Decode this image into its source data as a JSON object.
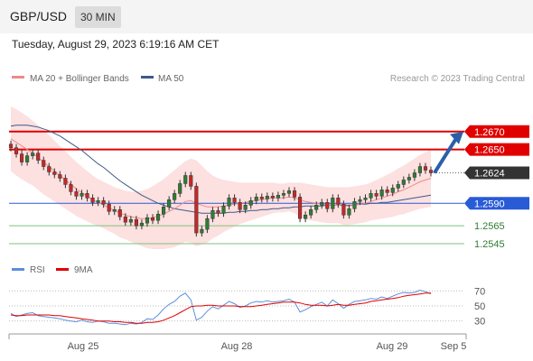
{
  "header": {
    "symbol": "GBP/USD",
    "timeframe": "30 MIN",
    "datetime": "Tuesday, August 29, 2023 6:19:16 AM CET"
  },
  "legend": {
    "ma20_label": "MA 20 + Bollinger Bands",
    "ma50_label": "MA 50",
    "copyright": "Research © 2023 Trading Central",
    "rsi_label": "RSI",
    "rsi_ma_label": "9MA"
  },
  "colors": {
    "up_candle": "#2e7d32",
    "down_candle": "#c62828",
    "ma20": "#ef8a8a",
    "bollinger_fill": "#fde0e0",
    "ma50": "#3d5a8a",
    "resistance": "#e00000",
    "pivot": "#2a5bd7",
    "support": "#7cc37c",
    "current_price_tag": "#333333",
    "rsi_line": "#5b8fd9",
    "rsi_ma": "#e00000",
    "forecast_arrow": "#2a5fa8"
  },
  "chart_data": [
    {
      "type": "candlestick",
      "x_tick_labels": [
        "Aug 25",
        "Aug 28",
        "Aug 29",
        "Sep 5"
      ],
      "ylim": [
        1.254,
        1.271
      ],
      "horizontal_levels": [
        {
          "value": 1.267,
          "label": "1.2670",
          "kind": "resistance"
        },
        {
          "value": 1.265,
          "label": "1.2650",
          "kind": "resistance"
        },
        {
          "value": 1.2624,
          "label": "1.2624",
          "kind": "current"
        },
        {
          "value": 1.259,
          "label": "1.2590",
          "kind": "pivot"
        },
        {
          "value": 1.2565,
          "label": "1.2565",
          "kind": "support"
        },
        {
          "value": 1.2545,
          "label": "1.2545",
          "kind": "support"
        }
      ],
      "close": [
        1.2652,
        1.2645,
        1.2636,
        1.2643,
        1.2646,
        1.2638,
        1.2631,
        1.2625,
        1.2622,
        1.2618,
        1.2611,
        1.2603,
        1.2598,
        1.2601,
        1.2596,
        1.2591,
        1.2593,
        1.2589,
        1.2581,
        1.2583,
        1.2575,
        1.2569,
        1.2572,
        1.2565,
        1.2568,
        1.2574,
        1.2571,
        1.2578,
        1.2586,
        1.2594,
        1.2601,
        1.2612,
        1.2621,
        1.2609,
        1.2557,
        1.2561,
        1.2573,
        1.2582,
        1.2579,
        1.2587,
        1.2596,
        1.2591,
        1.2583,
        1.2588,
        1.2593,
        1.2597,
        1.2595,
        1.2598,
        1.2596,
        1.2599,
        1.2601,
        1.2604,
        1.2597,
        1.2573,
        1.2577,
        1.2583,
        1.2588,
        1.2591,
        1.2584,
        1.2596,
        1.2589,
        1.2577,
        1.2584,
        1.2592,
        1.2594,
        1.2596,
        1.2601,
        1.2598,
        1.2605,
        1.2602,
        1.2607,
        1.2611,
        1.2616,
        1.2619,
        1.2624,
        1.2631,
        1.2627,
        1.2624
      ],
      "ma20": [
        1.2662,
        1.2658,
        1.2654,
        1.265,
        1.2646,
        1.2641,
        1.2636,
        1.2631,
        1.2626,
        1.2621,
        1.2616,
        1.2611,
        1.2606,
        1.2602,
        1.2598,
        1.2594,
        1.2591,
        1.2588,
        1.2585,
        1.2582,
        1.2579,
        1.2577,
        1.2575,
        1.2574,
        1.2573,
        1.2573,
        1.2574,
        1.2576,
        1.2578,
        1.2581,
        1.2584,
        1.2588,
        1.2592,
        1.2593,
        1.259,
        1.2588,
        1.2586,
        1.2586,
        1.2586,
        1.2587,
        1.2588,
        1.2589,
        1.259,
        1.2591,
        1.2592,
        1.2593,
        1.2594,
        1.2595,
        1.2596,
        1.2596,
        1.2596,
        1.2597,
        1.2596,
        1.2594,
        1.2592,
        1.2591,
        1.259,
        1.2589,
        1.2588,
        1.2588,
        1.2588,
        1.2587,
        1.2587,
        1.2588,
        1.2589,
        1.259,
        1.2592,
        1.2594,
        1.2596,
        1.2598,
        1.26,
        1.2603,
        1.2605,
        1.2608,
        1.2611,
        1.2614,
        1.2616,
        1.2618
      ],
      "bb_upper": [
        1.2698,
        1.2695,
        1.2691,
        1.2687,
        1.2682,
        1.2677,
        1.2672,
        1.2666,
        1.266,
        1.2654,
        1.2648,
        1.2642,
        1.2636,
        1.2631,
        1.2626,
        1.2621,
        1.2617,
        1.2614,
        1.2611,
        1.2608,
        1.2606,
        1.2604,
        1.2603,
        1.2603,
        1.2604,
        1.2606,
        1.2609,
        1.2613,
        1.2617,
        1.2622,
        1.2627,
        1.2632,
        1.2637,
        1.264,
        1.2638,
        1.2632,
        1.2626,
        1.2621,
        1.2618,
        1.2616,
        1.2615,
        1.2614,
        1.2613,
        1.2613,
        1.2613,
        1.2613,
        1.2613,
        1.2613,
        1.2613,
        1.2612,
        1.2612,
        1.2613,
        1.2613,
        1.2613,
        1.2612,
        1.2611,
        1.261,
        1.2609,
        1.2608,
        1.2608,
        1.2608,
        1.2608,
        1.2608,
        1.2609,
        1.261,
        1.2611,
        1.2613,
        1.2616,
        1.2619,
        1.2622,
        1.2625,
        1.2629,
        1.2632,
        1.2636,
        1.264,
        1.2644,
        1.2647,
        1.265
      ],
      "bb_lower": [
        1.2626,
        1.2621,
        1.2617,
        1.2613,
        1.261,
        1.2605,
        1.26,
        1.2596,
        1.2592,
        1.2588,
        1.2584,
        1.258,
        1.2576,
        1.2573,
        1.257,
        1.2567,
        1.2565,
        1.2562,
        1.2559,
        1.2556,
        1.2552,
        1.255,
        1.2547,
        1.2545,
        1.2542,
        1.254,
        1.2539,
        1.2539,
        1.2539,
        1.254,
        1.2541,
        1.2544,
        1.2547,
        1.2546,
        1.2542,
        1.2544,
        1.2546,
        1.2551,
        1.2554,
        1.2558,
        1.2561,
        1.2564,
        1.2567,
        1.2569,
        1.2571,
        1.2573,
        1.2575,
        1.2577,
        1.2579,
        1.258,
        1.258,
        1.2581,
        1.2579,
        1.2575,
        1.2572,
        1.2571,
        1.257,
        1.2569,
        1.2568,
        1.2568,
        1.2568,
        1.2566,
        1.2566,
        1.2567,
        1.2568,
        1.2569,
        1.2571,
        1.2572,
        1.2573,
        1.2574,
        1.2575,
        1.2577,
        1.2578,
        1.258,
        1.2582,
        1.2584,
        1.2585,
        1.2586
      ],
      "ma50": [
        1.2676,
        1.2677,
        1.2677,
        1.2677,
        1.2676,
        1.2675,
        1.2673,
        1.2671,
        1.2668,
        1.2665,
        1.2661,
        1.2657,
        1.2653,
        1.2649,
        1.2644,
        1.2639,
        1.2634,
        1.263,
        1.2625,
        1.262,
        1.2615,
        1.2611,
        1.2607,
        1.2603,
        1.2599,
        1.2596,
        1.2593,
        1.259,
        1.2588,
        1.2586,
        1.2584,
        1.2583,
        1.2582,
        1.2581,
        1.258,
        1.2579,
        1.2579,
        1.2579,
        1.2579,
        1.2579,
        1.258,
        1.258,
        1.2581,
        1.2581,
        1.2582,
        1.2582,
        1.2583,
        1.2583,
        1.2584,
        1.2584,
        1.2585,
        1.2585,
        1.2586,
        1.2586,
        1.2587,
        1.2587,
        1.2587,
        1.2587,
        1.2588,
        1.2588,
        1.2588,
        1.2588,
        1.2588,
        1.2588,
        1.2589,
        1.2589,
        1.259,
        1.259,
        1.2591,
        1.2591,
        1.2592,
        1.2593,
        1.2594,
        1.2595,
        1.2596,
        1.2597,
        1.2598,
        1.2599
      ],
      "forecast_target": 1.267
    },
    {
      "type": "line",
      "name": "RSI",
      "ylim": [
        20,
        80
      ],
      "y_tick_labels": [
        "70",
        "50",
        "30"
      ],
      "y_ticks": [
        70,
        50,
        30
      ],
      "series": [
        {
          "name": "RSI",
          "values": [
            40,
            36,
            38,
            40,
            41,
            37,
            36,
            35,
            34,
            33,
            31,
            30,
            29,
            31,
            29,
            28,
            30,
            29,
            27,
            27,
            26,
            25,
            27,
            26,
            28,
            33,
            32,
            38,
            46,
            52,
            56,
            63,
            67,
            58,
            31,
            35,
            43,
            49,
            46,
            51,
            56,
            53,
            48,
            50,
            54,
            56,
            55,
            57,
            55,
            56,
            57,
            59,
            55,
            42,
            45,
            49,
            52,
            55,
            50,
            58,
            53,
            47,
            52,
            56,
            57,
            58,
            60,
            59,
            62,
            60,
            63,
            66,
            68,
            67,
            68,
            71,
            69,
            66
          ]
        },
        {
          "name": "9MA",
          "values": [
            38,
            37,
            37,
            38,
            38,
            38,
            38,
            38,
            37,
            37,
            36,
            35,
            34,
            33,
            32,
            31,
            30,
            30,
            30,
            29,
            29,
            28,
            28,
            27,
            27,
            28,
            28,
            29,
            31,
            34,
            37,
            41,
            45,
            49,
            50,
            50,
            51,
            51,
            50,
            50,
            50,
            50,
            49,
            49,
            49,
            50,
            51,
            52,
            53,
            54,
            55,
            55,
            55,
            54,
            52,
            51,
            51,
            51,
            50,
            51,
            52,
            51,
            51,
            52,
            53,
            54,
            56,
            57,
            58,
            59,
            60,
            61,
            63,
            64,
            65,
            66,
            67,
            67
          ]
        }
      ]
    }
  ]
}
